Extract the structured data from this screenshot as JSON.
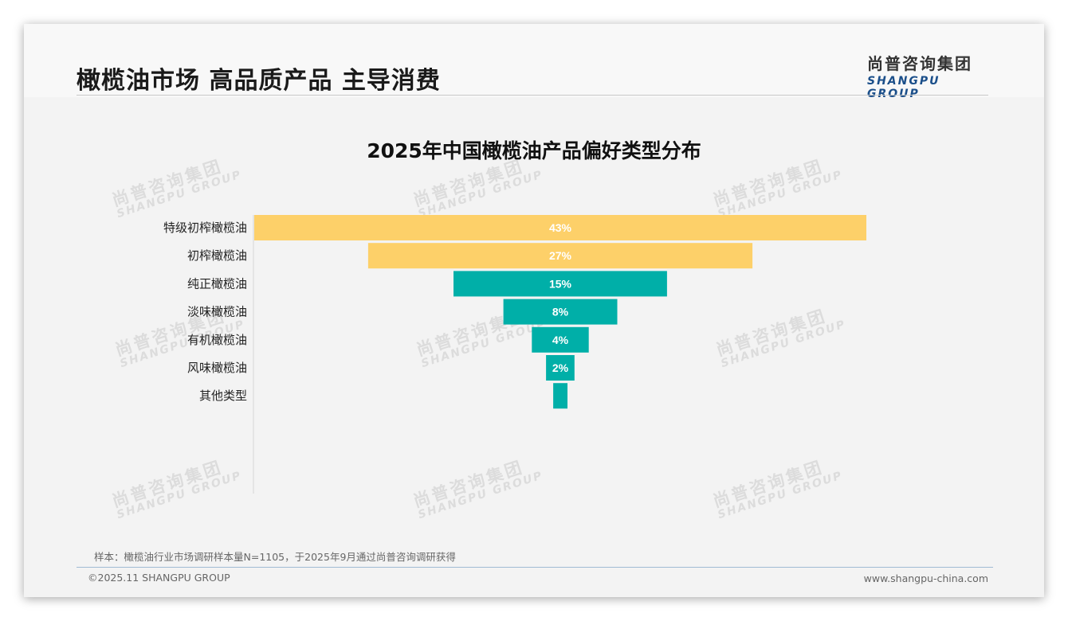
{
  "page": {
    "title": "橄榄油市场 高品质产品 主导消费",
    "logo_cn": "尚普咨询集团",
    "logo_en": "SHANGPU GROUP",
    "watermark_cn": "尚普咨询集团",
    "watermark_en": "SHANGPU GROUP",
    "footnote": "样本：橄榄油行业市场调研样本量N=1105，于2025年9月通过尚普咨询调研获得",
    "copyright": "©2025.11 SHANGPU GROUP",
    "website": "www.shangpu-china.com"
  },
  "chart_data": {
    "type": "bar",
    "subtype": "funnel",
    "title": "2025年中国橄榄油产品偏好类型分布",
    "categories": [
      "特级初榨橄榄油",
      "初榨橄榄油",
      "纯正橄榄油",
      "淡味橄榄油",
      "有机橄榄油",
      "风味橄榄油",
      "其他类型"
    ],
    "values": [
      43,
      27,
      15,
      8,
      4,
      2,
      1
    ],
    "data_labels": [
      "43%",
      "27%",
      "15%",
      "8%",
      "4%",
      "2%",
      ""
    ],
    "bar_colors": [
      "#fdd069",
      "#fdd069",
      "#00afa8",
      "#00afa8",
      "#00afa8",
      "#00afa8",
      "#00afa8"
    ],
    "label_color": "#ffffff",
    "xlim": [
      0,
      43
    ],
    "legend": "none",
    "grid": false
  }
}
